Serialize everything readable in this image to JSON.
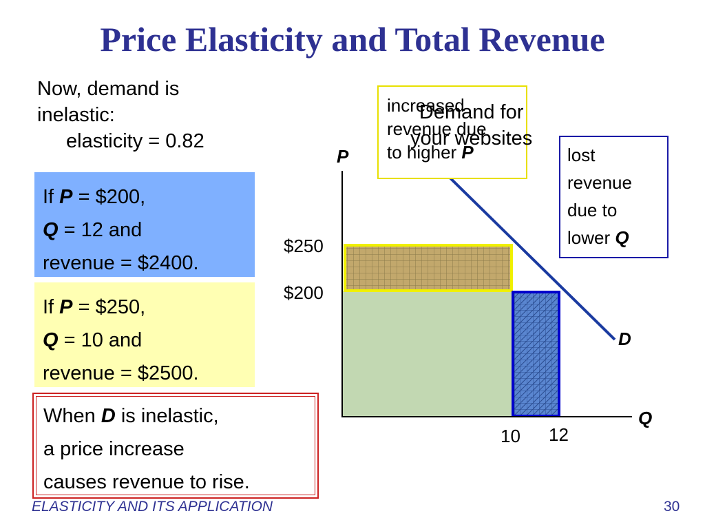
{
  "slide": {
    "title": "Price Elasticity and Total Revenue",
    "intro_line1": "Now, demand is",
    "intro_line2": "inelastic:",
    "intro_line3": "elasticity = 0.82",
    "box_a": {
      "line1_pre": "If ",
      "line1_var": "P",
      "line1_post": " = $200,",
      "line2_var": "Q",
      "line2_post": " = 12 and",
      "line3": "revenue = $2400."
    },
    "box_b": {
      "line1_pre": "If ",
      "line1_var": "P",
      "line1_post": " = $250,",
      "line2_var": "Q",
      "line2_post": " = 10 and",
      "line3": "revenue = $2500."
    },
    "box_c": {
      "line1_pre": "When ",
      "line1_var": "D",
      "line1_post": " is inelastic,",
      "line2": "a price increase",
      "line3": "causes revenue to rise."
    },
    "footer_left": "ELASTICITY AND ITS APPLICATION",
    "page_number": "30"
  },
  "chart_data": {
    "type": "diagram",
    "axes": {
      "y_label": "P",
      "x_label": "Q"
    },
    "price_ticks": [
      "$250",
      "$200"
    ],
    "quantity_ticks": [
      "10",
      "12"
    ],
    "demand_curve_label": "D",
    "demand_title_line1": "Demand for",
    "demand_title_line2": "your websites",
    "callout_increase": {
      "line1": "increased",
      "line2": "revenue due",
      "line3_pre": "to higher ",
      "line3_var": "P"
    },
    "callout_lost": {
      "line1": "lost",
      "line2": "revenue",
      "line3": "due to",
      "line4_pre": "lower ",
      "line4_var": "Q"
    },
    "colors": {
      "title": "#2e3192",
      "box_a": "#7fb0ff",
      "box_b": "#ffffb3",
      "base_revenue": "#c2d8b2",
      "gained_revenue": "#c2a86c",
      "gained_border": "#f0f000",
      "lost_revenue": "#5a86d0",
      "lost_border": "#0000cc",
      "demand_line": "#1a3aa0"
    }
  }
}
